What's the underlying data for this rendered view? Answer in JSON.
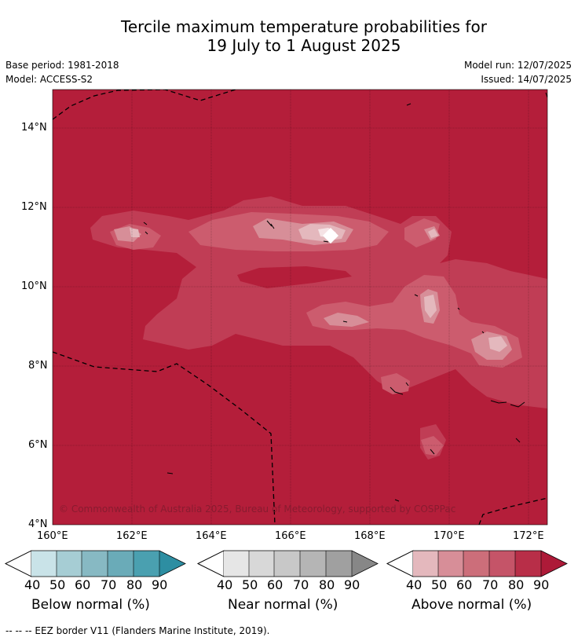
{
  "title": {
    "line1": "Tercile maximum temperature probabilities for",
    "line2": "19 July to 1 August 2025"
  },
  "meta": {
    "base_period": "Base period: 1981-2018",
    "model": "Model: ACCESS-S2",
    "model_run": "Model run: 12/07/2025",
    "issued": "Issued: 14/07/2025"
  },
  "map": {
    "lat_labels": [
      "14°N",
      "12°N",
      "10°N",
      "8°N",
      "6°N",
      "4°N"
    ],
    "lon_labels": [
      "160°E",
      "162°E",
      "164°E",
      "166°E",
      "168°E",
      "170°E",
      "172°E"
    ],
    "lon_range": [
      160,
      172.5
    ],
    "lat_range": [
      4,
      15
    ],
    "copyright": "© Commonwealth of Australia 2025, Bureau of Meteorology, supported by COSPPac",
    "dominant_category": "Above normal",
    "background_level": 90,
    "colors": {
      "above_90": "#b41e3a",
      "above_80": "#c03d55",
      "above_70": "#cc5c6e",
      "above_60": "#d78e98",
      "above_50": "#e4b8bd",
      "above_40": "#f5e3e5"
    }
  },
  "colorbars": [
    {
      "title": "Below normal (%)",
      "ticks": [
        "40",
        "50",
        "60",
        "70",
        "80",
        "90"
      ],
      "colors": [
        "#c9e3e8",
        "#a6cdd4",
        "#87b9c3",
        "#6aabb8",
        "#4aa0b0",
        "#2d8ea2"
      ]
    },
    {
      "title": "Near normal (%)",
      "ticks": [
        "40",
        "50",
        "60",
        "70",
        "80",
        "90"
      ],
      "colors": [
        "#e6e6e6",
        "#d8d8d8",
        "#c8c8c8",
        "#b5b5b5",
        "#a0a0a0",
        "#878787"
      ]
    },
    {
      "title": "Above normal (%)",
      "ticks": [
        "40",
        "50",
        "60",
        "70",
        "80",
        "90"
      ],
      "colors": [
        "#e4b8bd",
        "#d78e98",
        "#cc6e7a",
        "#c55468",
        "#b82e48",
        "#ad1a38"
      ]
    }
  ],
  "footer": "-- -- -- EEZ border V11 (Flanders Marine Institute, 2019)."
}
